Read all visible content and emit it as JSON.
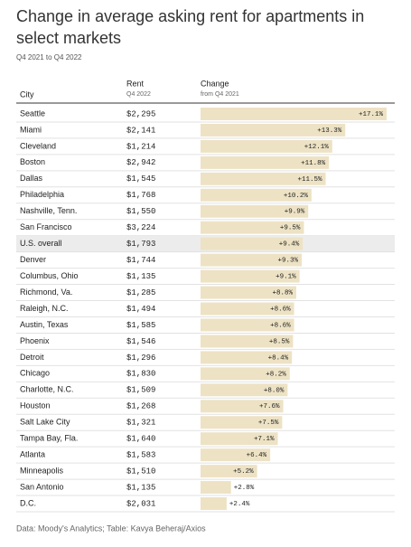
{
  "header": {
    "title_lines": [
      "Change in average asking rent for apartments in",
      "select markets"
    ],
    "subtitle": "Q4 2021 to Q4 2022"
  },
  "table": {
    "columns": [
      {
        "name": "City"
      },
      {
        "name": "Rent",
        "sub": "Q4 2022"
      },
      {
        "name": "Change",
        "sub": "from Q4 2021"
      }
    ],
    "highlight_row": 8,
    "rows": [
      {
        "city": "Seattle",
        "rent": "$2,295",
        "change": 17.1,
        "change_label": "+17.1%"
      },
      {
        "city": "Miami",
        "rent": "$2,141",
        "change": 13.3,
        "change_label": "+13.3%"
      },
      {
        "city": "Cleveland",
        "rent": "$1,214",
        "change": 12.1,
        "change_label": "+12.1%"
      },
      {
        "city": "Boston",
        "rent": "$2,942",
        "change": 11.8,
        "change_label": "+11.8%"
      },
      {
        "city": "Dallas",
        "rent": "$1,545",
        "change": 11.5,
        "change_label": "+11.5%"
      },
      {
        "city": "Philadelphia",
        "rent": "$1,768",
        "change": 10.2,
        "change_label": "+10.2%"
      },
      {
        "city": "Nashville, Tenn.",
        "rent": "$1,550",
        "change": 9.9,
        "change_label": "+9.9%"
      },
      {
        "city": "San Francisco",
        "rent": "$3,224",
        "change": 9.5,
        "change_label": "+9.5%"
      },
      {
        "city": "U.S. overall",
        "rent": "$1,793",
        "change": 9.4,
        "change_label": "+9.4%"
      },
      {
        "city": "Denver",
        "rent": "$1,744",
        "change": 9.3,
        "change_label": "+9.3%"
      },
      {
        "city": "Columbus, Ohio",
        "rent": "$1,135",
        "change": 9.1,
        "change_label": "+9.1%"
      },
      {
        "city": "Richmond, Va.",
        "rent": "$1,285",
        "change": 8.8,
        "change_label": "+8.8%"
      },
      {
        "city": "Raleigh, N.C.",
        "rent": "$1,494",
        "change": 8.6,
        "change_label": "+8.6%"
      },
      {
        "city": "Austin, Texas",
        "rent": "$1,585",
        "change": 8.6,
        "change_label": "+8.6%"
      },
      {
        "city": "Phoenix",
        "rent": "$1,546",
        "change": 8.5,
        "change_label": "+8.5%"
      },
      {
        "city": "Detroit",
        "rent": "$1,296",
        "change": 8.4,
        "change_label": "+8.4%"
      },
      {
        "city": "Chicago",
        "rent": "$1,830",
        "change": 8.2,
        "change_label": "+8.2%"
      },
      {
        "city": "Charlotte, N.C.",
        "rent": "$1,509",
        "change": 8.0,
        "change_label": "+8.0%"
      },
      {
        "city": "Houston",
        "rent": "$1,268",
        "change": 7.6,
        "change_label": "+7.6%"
      },
      {
        "city": "Salt Lake City",
        "rent": "$1,321",
        "change": 7.5,
        "change_label": "+7.5%"
      },
      {
        "city": "Tampa Bay, Fla.",
        "rent": "$1,640",
        "change": 7.1,
        "change_label": "+7.1%"
      },
      {
        "city": "Atlanta",
        "rent": "$1,583",
        "change": 6.4,
        "change_label": "+6.4%"
      },
      {
        "city": "Minneapolis",
        "rent": "$1,510",
        "change": 5.2,
        "change_label": "+5.2%"
      },
      {
        "city": "San Antonio",
        "rent": "$1,135",
        "change": 2.8,
        "change_label": "+2.8%"
      },
      {
        "city": "D.C.",
        "rent": "$2,031",
        "change": 2.4,
        "change_label": "+2.4%"
      }
    ]
  },
  "footer": "Data: Moody's Analytics; Table: Kavya Beheraj/Axios"
}
